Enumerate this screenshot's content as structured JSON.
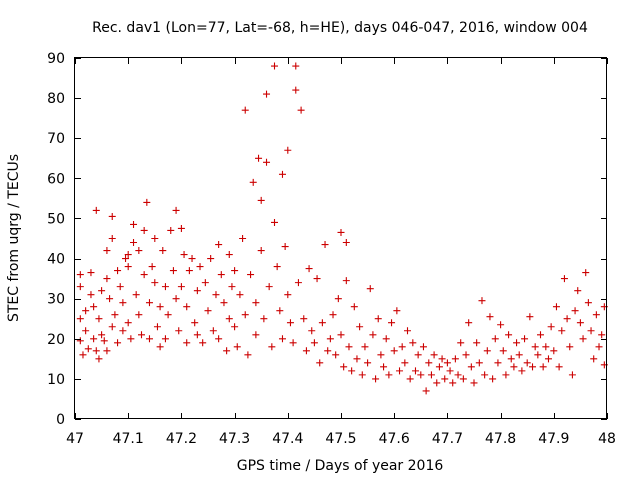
{
  "chart_data": {
    "type": "scatter",
    "title": "Rec. dav1 (Lon=77, Lat=-68, h=HE), days 046-047, 2016, window 004",
    "xlabel": "GPS time / Days of year 2016",
    "ylabel": "STEC from uqrg / TECUs",
    "xlim": [
      47,
      48
    ],
    "ylim": [
      0,
      90
    ],
    "xticks": [
      47,
      47.1,
      47.2,
      47.3,
      47.4,
      47.5,
      47.6,
      47.7,
      47.8,
      47.9,
      48
    ],
    "xtick_labels": [
      "47",
      "47.1",
      "47.2",
      "47.3",
      "47.4",
      "47.5",
      "47.6",
      "47.7",
      "47.8",
      "47.9",
      "48"
    ],
    "yticks": [
      0,
      10,
      20,
      30,
      40,
      50,
      60,
      70,
      80,
      90
    ],
    "ytick_labels": [
      "0",
      "10",
      "20",
      "30",
      "40",
      "50",
      "60",
      "70",
      "80",
      "90"
    ],
    "grid": false,
    "marker": "plus",
    "color": "#cc0000",
    "points": [
      [
        47.01,
        19.5
      ],
      [
        47.01,
        25
      ],
      [
        47.01,
        33
      ],
      [
        47.01,
        36
      ],
      [
        47.015,
        16
      ],
      [
        47.02,
        22
      ],
      [
        47.02,
        27
      ],
      [
        47.025,
        17.5
      ],
      [
        47.03,
        31
      ],
      [
        47.03,
        36.5
      ],
      [
        47.035,
        20
      ],
      [
        47.035,
        28
      ],
      [
        47.04,
        17
      ],
      [
        47.04,
        52
      ],
      [
        47.045,
        15
      ],
      [
        47.045,
        25
      ],
      [
        47.05,
        32
      ],
      [
        47.05,
        21
      ],
      [
        47.055,
        19.5
      ],
      [
        47.06,
        35
      ],
      [
        47.06,
        42
      ],
      [
        47.06,
        17
      ],
      [
        47.065,
        30
      ],
      [
        47.07,
        23
      ],
      [
        47.07,
        45
      ],
      [
        47.07,
        50.5
      ],
      [
        47.075,
        26
      ],
      [
        47.08,
        37
      ],
      [
        47.08,
        19
      ],
      [
        47.085,
        33
      ],
      [
        47.09,
        29
      ],
      [
        47.09,
        22
      ],
      [
        47.095,
        40
      ],
      [
        47.1,
        38
      ],
      [
        47.1,
        24
      ],
      [
        47.1,
        41
      ],
      [
        47.105,
        20
      ],
      [
        47.11,
        44
      ],
      [
        47.11,
        48.5
      ],
      [
        47.115,
        31
      ],
      [
        47.12,
        42
      ],
      [
        47.12,
        26
      ],
      [
        47.125,
        21
      ],
      [
        47.13,
        36
      ],
      [
        47.13,
        47
      ],
      [
        47.135,
        54
      ],
      [
        47.14,
        20
      ],
      [
        47.14,
        29
      ],
      [
        47.145,
        38
      ],
      [
        47.15,
        34
      ],
      [
        47.15,
        45
      ],
      [
        47.155,
        23
      ],
      [
        47.16,
        18
      ],
      [
        47.16,
        28
      ],
      [
        47.165,
        42
      ],
      [
        47.17,
        33
      ],
      [
        47.17,
        20
      ],
      [
        47.175,
        26
      ],
      [
        47.18,
        47
      ],
      [
        47.185,
        37
      ],
      [
        47.19,
        52
      ],
      [
        47.19,
        30
      ],
      [
        47.195,
        22
      ],
      [
        47.2,
        33
      ],
      [
        47.2,
        47.5
      ],
      [
        47.205,
        41
      ],
      [
        47.21,
        28
      ],
      [
        47.21,
        19
      ],
      [
        47.215,
        37
      ],
      [
        47.22,
        40
      ],
      [
        47.225,
        24
      ],
      [
        47.23,
        32
      ],
      [
        47.23,
        21
      ],
      [
        47.235,
        38
      ],
      [
        47.24,
        19
      ],
      [
        47.245,
        34
      ],
      [
        47.25,
        27
      ],
      [
        47.255,
        40
      ],
      [
        47.26,
        22
      ],
      [
        47.265,
        31
      ],
      [
        47.27,
        43.5
      ],
      [
        47.27,
        20
      ],
      [
        47.275,
        36
      ],
      [
        47.28,
        29
      ],
      [
        47.285,
        17
      ],
      [
        47.29,
        41
      ],
      [
        47.29,
        25
      ],
      [
        47.295,
        33
      ],
      [
        47.3,
        23
      ],
      [
        47.3,
        37
      ],
      [
        47.305,
        18
      ],
      [
        47.31,
        31
      ],
      [
        47.315,
        45
      ],
      [
        47.32,
        77
      ],
      [
        47.32,
        26
      ],
      [
        47.325,
        16
      ],
      [
        47.33,
        36
      ],
      [
        47.335,
        59
      ],
      [
        47.34,
        21
      ],
      [
        47.34,
        29
      ],
      [
        47.345,
        65
      ],
      [
        47.35,
        54.5
      ],
      [
        47.35,
        42
      ],
      [
        47.355,
        25
      ],
      [
        47.36,
        81
      ],
      [
        47.36,
        64
      ],
      [
        47.365,
        33
      ],
      [
        47.37,
        18
      ],
      [
        47.375,
        49
      ],
      [
        47.375,
        88
      ],
      [
        47.38,
        38
      ],
      [
        47.385,
        27
      ],
      [
        47.39,
        61
      ],
      [
        47.39,
        20
      ],
      [
        47.395,
        43
      ],
      [
        47.4,
        67
      ],
      [
        47.4,
        31
      ],
      [
        47.405,
        24
      ],
      [
        47.41,
        19
      ],
      [
        47.415,
        88
      ],
      [
        47.415,
        82
      ],
      [
        47.42,
        34
      ],
      [
        47.425,
        77
      ],
      [
        47.43,
        25
      ],
      [
        47.435,
        17
      ],
      [
        47.44,
        37.5
      ],
      [
        47.445,
        22
      ],
      [
        47.45,
        19
      ],
      [
        47.455,
        35
      ],
      [
        47.46,
        14
      ],
      [
        47.465,
        24
      ],
      [
        47.47,
        43.5
      ],
      [
        47.475,
        17
      ],
      [
        47.48,
        20
      ],
      [
        47.485,
        26
      ],
      [
        47.49,
        16
      ],
      [
        47.495,
        30
      ],
      [
        47.5,
        46.5
      ],
      [
        47.5,
        21
      ],
      [
        47.505,
        13
      ],
      [
        47.51,
        44
      ],
      [
        47.51,
        34.5
      ],
      [
        47.515,
        18
      ],
      [
        47.52,
        12
      ],
      [
        47.525,
        28
      ],
      [
        47.53,
        15
      ],
      [
        47.535,
        23
      ],
      [
        47.54,
        11
      ],
      [
        47.545,
        18
      ],
      [
        47.55,
        14
      ],
      [
        47.555,
        32.5
      ],
      [
        47.56,
        21
      ],
      [
        47.565,
        10
      ],
      [
        47.57,
        25
      ],
      [
        47.575,
        16
      ],
      [
        47.58,
        13
      ],
      [
        47.585,
        20
      ],
      [
        47.59,
        11
      ],
      [
        47.595,
        24
      ],
      [
        47.6,
        17
      ],
      [
        47.605,
        27
      ],
      [
        47.61,
        12
      ],
      [
        47.615,
        18
      ],
      [
        47.62,
        14
      ],
      [
        47.625,
        22
      ],
      [
        47.63,
        10
      ],
      [
        47.635,
        19
      ],
      [
        47.64,
        12
      ],
      [
        47.645,
        16
      ],
      [
        47.65,
        11
      ],
      [
        47.655,
        18
      ],
      [
        47.66,
        7
      ],
      [
        47.665,
        14
      ],
      [
        47.67,
        11
      ],
      [
        47.675,
        16
      ],
      [
        47.68,
        9
      ],
      [
        47.685,
        13
      ],
      [
        47.69,
        15
      ],
      [
        47.695,
        10
      ],
      [
        47.7,
        14
      ],
      [
        47.705,
        12
      ],
      [
        47.71,
        9
      ],
      [
        47.715,
        15
      ],
      [
        47.72,
        11
      ],
      [
        47.725,
        19
      ],
      [
        47.73,
        10
      ],
      [
        47.735,
        16
      ],
      [
        47.74,
        24
      ],
      [
        47.745,
        13
      ],
      [
        47.75,
        9
      ],
      [
        47.755,
        19
      ],
      [
        47.76,
        14
      ],
      [
        47.765,
        29.5
      ],
      [
        47.77,
        11
      ],
      [
        47.775,
        17
      ],
      [
        47.78,
        25.5
      ],
      [
        47.785,
        10
      ],
      [
        47.79,
        20
      ],
      [
        47.795,
        14
      ],
      [
        47.8,
        23.5
      ],
      [
        47.805,
        17
      ],
      [
        47.81,
        11
      ],
      [
        47.815,
        21
      ],
      [
        47.82,
        15
      ],
      [
        47.825,
        13
      ],
      [
        47.83,
        19
      ],
      [
        47.835,
        16
      ],
      [
        47.84,
        12
      ],
      [
        47.845,
        20
      ],
      [
        47.85,
        14
      ],
      [
        47.855,
        25.5
      ],
      [
        47.86,
        13
      ],
      [
        47.865,
        18
      ],
      [
        47.87,
        16
      ],
      [
        47.875,
        21
      ],
      [
        47.88,
        13
      ],
      [
        47.885,
        18
      ],
      [
        47.89,
        15
      ],
      [
        47.895,
        23
      ],
      [
        47.9,
        17
      ],
      [
        47.905,
        28
      ],
      [
        47.91,
        13
      ],
      [
        47.915,
        22
      ],
      [
        47.92,
        35
      ],
      [
        47.925,
        25
      ],
      [
        47.93,
        18
      ],
      [
        47.935,
        11
      ],
      [
        47.94,
        27
      ],
      [
        47.945,
        32
      ],
      [
        47.95,
        24
      ],
      [
        47.955,
        20
      ],
      [
        47.96,
        36.5
      ],
      [
        47.965,
        29
      ],
      [
        47.97,
        22
      ],
      [
        47.975,
        15
      ],
      [
        47.98,
        26
      ],
      [
        47.985,
        18
      ],
      [
        47.99,
        21
      ],
      [
        47.995,
        13.5
      ],
      [
        47.995,
        28
      ]
    ]
  }
}
